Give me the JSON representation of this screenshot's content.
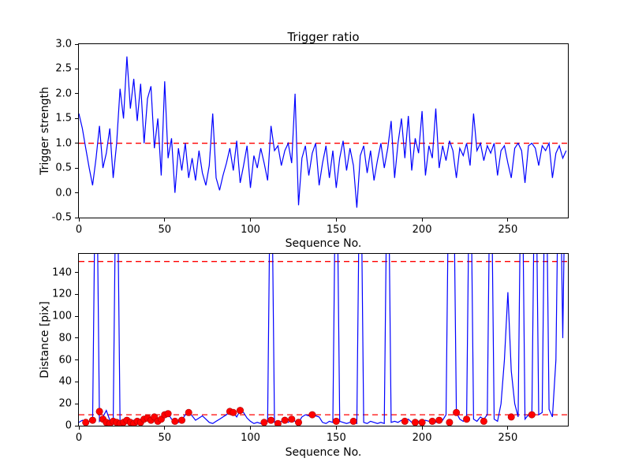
{
  "figure": {
    "background": "#ffffff",
    "line_color": "#0000ff",
    "threshold_color": "#ff0000",
    "marker_color": "#ff0000"
  },
  "chart_data": [
    {
      "type": "line",
      "title": "Trigger ratio",
      "xlabel": "Sequence No.",
      "ylabel": "Trigger strength",
      "xlim": [
        0,
        285
      ],
      "ylim": [
        -0.5,
        3.0
      ],
      "xticks": [
        0,
        50,
        100,
        150,
        200,
        250
      ],
      "yticks": [
        -0.5,
        0.0,
        0.5,
        1.0,
        1.5,
        2.0,
        2.5,
        3.0
      ],
      "ytick_labels": [
        "-0.5",
        "0.0",
        "0.5",
        "1.0",
        "1.5",
        "2.0",
        "2.5",
        "3.0"
      ],
      "grid": false,
      "legend_position": "none",
      "line_color": "#0000ff",
      "thresholds": [
        {
          "y": 1.0,
          "color": "#ff0000",
          "style": "dashed"
        }
      ],
      "x_start": 0,
      "x_step": 2,
      "values": [
        1.6,
        1.3,
        0.9,
        0.5,
        0.15,
        0.7,
        1.35,
        0.5,
        0.8,
        1.3,
        0.3,
        1.0,
        2.1,
        1.5,
        2.75,
        1.7,
        2.3,
        1.45,
        2.2,
        1.0,
        1.9,
        2.15,
        0.9,
        1.5,
        0.35,
        2.25,
        0.7,
        1.1,
        0.0,
        0.9,
        0.45,
        1.0,
        0.3,
        0.7,
        0.25,
        0.85,
        0.4,
        0.15,
        0.55,
        1.6,
        0.3,
        0.05,
        0.35,
        0.6,
        0.9,
        0.45,
        1.05,
        0.2,
        0.55,
        0.95,
        0.1,
        0.75,
        0.5,
        0.9,
        0.6,
        0.25,
        1.35,
        0.85,
        0.95,
        0.55,
        0.85,
        1.0,
        0.6,
        2.0,
        -0.25,
        0.7,
        0.95,
        0.35,
        0.8,
        1.0,
        0.15,
        0.6,
        0.95,
        0.3,
        0.85,
        0.1,
        0.7,
        1.05,
        0.45,
        0.9,
        0.55,
        -0.3,
        0.75,
        0.95,
        0.4,
        0.85,
        0.25,
        0.65,
        1.0,
        0.5,
        0.9,
        1.45,
        0.3,
        1.0,
        1.5,
        0.7,
        1.55,
        0.45,
        1.1,
        0.8,
        1.65,
        0.35,
        0.95,
        0.7,
        1.7,
        0.5,
        0.95,
        0.65,
        1.05,
        0.85,
        0.3,
        0.9,
        0.75,
        1.0,
        0.55,
        1.6,
        0.85,
        1.0,
        0.65,
        0.95,
        0.8,
        1.0,
        0.35,
        0.85,
        0.95,
        0.6,
        0.3,
        0.9,
        1.0,
        0.85,
        0.2,
        0.95,
        1.0,
        0.9,
        0.55,
        0.95,
        0.85,
        1.0,
        0.3,
        0.8,
        0.95,
        0.7,
        0.85
      ]
    },
    {
      "type": "line",
      "title": "",
      "xlabel": "Sequence No.",
      "ylabel": "Distance [pix]",
      "xlim": [
        0,
        285
      ],
      "ylim": [
        0,
        157
      ],
      "xticks": [
        0,
        50,
        100,
        150,
        200,
        250
      ],
      "yticks": [
        0,
        20,
        40,
        60,
        80,
        100,
        120,
        140
      ],
      "ytick_labels": [
        "0",
        "20",
        "40",
        "60",
        "80",
        "100",
        "120",
        "140"
      ],
      "grid": false,
      "legend_position": "none",
      "line_color": "#0000ff",
      "thresholds": [
        {
          "y": 150,
          "color": "#ff0000",
          "style": "dashed"
        },
        {
          "y": 10,
          "color": "#ff0000",
          "style": "dashed"
        }
      ],
      "x_start": 0,
      "x_step": 2,
      "values": [
        3,
        5,
        2,
        4,
        3,
        300,
        4,
        8,
        14,
        5,
        3,
        300,
        3,
        2,
        4,
        3,
        5,
        3,
        6,
        4,
        7,
        5,
        6,
        4,
        8,
        10,
        11,
        6,
        4,
        3,
        5,
        10,
        12,
        9,
        5,
        7,
        9,
        6,
        3,
        2,
        4,
        6,
        8,
        10,
        13,
        12,
        8,
        14,
        12,
        7,
        4,
        2,
        3,
        2,
        3,
        4,
        300,
        3,
        2,
        4,
        5,
        3,
        6,
        4,
        3,
        8,
        10,
        9,
        10,
        9,
        8,
        3,
        2,
        4,
        3,
        300,
        4,
        3,
        2,
        3,
        4,
        2,
        300,
        3,
        2,
        4,
        3,
        2,
        3,
        2,
        300,
        3,
        4,
        3,
        5,
        4,
        6,
        3,
        5,
        4,
        3,
        5,
        4,
        6,
        3,
        4,
        5,
        10,
        300,
        300,
        12,
        6,
        4,
        8,
        300,
        6,
        4,
        8,
        6,
        10,
        300,
        6,
        4,
        20,
        60,
        122,
        50,
        20,
        8,
        300,
        6,
        10,
        8,
        300,
        10,
        12,
        300,
        15,
        8,
        60,
        300,
        80,
        300
      ],
      "scatter": {
        "color": "#ff0000",
        "points": [
          [
            4,
            3
          ],
          [
            8,
            5
          ],
          [
            12,
            13
          ],
          [
            14,
            6
          ],
          [
            16,
            3
          ],
          [
            18,
            2
          ],
          [
            20,
            4
          ],
          [
            22,
            3
          ],
          [
            24,
            2
          ],
          [
            26,
            3
          ],
          [
            28,
            5
          ],
          [
            30,
            3
          ],
          [
            32,
            2
          ],
          [
            34,
            4
          ],
          [
            36,
            3
          ],
          [
            38,
            6
          ],
          [
            40,
            7
          ],
          [
            42,
            5
          ],
          [
            44,
            8
          ],
          [
            46,
            4
          ],
          [
            48,
            6
          ],
          [
            50,
            10
          ],
          [
            52,
            11
          ],
          [
            56,
            4
          ],
          [
            60,
            5
          ],
          [
            64,
            12
          ],
          [
            88,
            13
          ],
          [
            90,
            12
          ],
          [
            94,
            14
          ],
          [
            108,
            3
          ],
          [
            112,
            5
          ],
          [
            116,
            2
          ],
          [
            120,
            5
          ],
          [
            124,
            6
          ],
          [
            128,
            3
          ],
          [
            136,
            10
          ],
          [
            150,
            4
          ],
          [
            160,
            4
          ],
          [
            190,
            4
          ],
          [
            196,
            3
          ],
          [
            200,
            3
          ],
          [
            206,
            4
          ],
          [
            210,
            5
          ],
          [
            216,
            3
          ],
          [
            220,
            12
          ],
          [
            226,
            6
          ],
          [
            236,
            4
          ],
          [
            252,
            8
          ],
          [
            264,
            10
          ]
        ]
      }
    }
  ]
}
